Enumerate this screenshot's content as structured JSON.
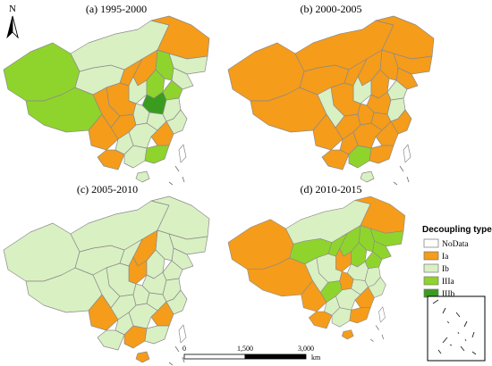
{
  "north_label": "N",
  "panels": [
    {
      "title": "(a) 1995-2000",
      "fills": [
        "IIIa",
        "IIIa",
        "Ib",
        "Ib",
        "Ia",
        "Ib",
        "Ib",
        "IIIa",
        "Ia",
        "Ia",
        "Ib",
        "IIIa",
        "IIIa",
        "IIIb",
        "Ia",
        "Ia",
        "Ia",
        "Ia",
        "Ib",
        "Ib",
        "Ib",
        "Ib",
        "Ia",
        "Ib",
        "Ib",
        "Ia",
        "Ib",
        "IIIa",
        "Ib",
        "NoData"
      ]
    },
    {
      "title": "(b) 2000-2005",
      "fills": [
        "Ia",
        "Ia",
        "Ia",
        "Ia",
        "Ia",
        "Ia",
        "Ia",
        "Ia",
        "Ia",
        "Ia",
        "Ib",
        "Ia",
        "Ib",
        "Ia",
        "Ia",
        "Ib",
        "Ia",
        "Ia",
        "Ia",
        "Ia",
        "Ib",
        "Ia",
        "Ia",
        "Ia",
        "Ia",
        "Ia",
        "IIIa",
        "Ia",
        "Ib",
        "NoData"
      ]
    },
    {
      "title": "(c) 2005-2010",
      "fills": [
        "Ib",
        "Ib",
        "Ib",
        "Ib",
        "Ib",
        "Ib",
        "Ib",
        "Ib",
        "Ia",
        "Ib",
        "Ia",
        "Ib",
        "Ib",
        "Ib",
        "Ib",
        "Ib",
        "Ia",
        "Ib",
        "Ib",
        "Ib",
        "Ib",
        "Ib",
        "Ia",
        "Ib",
        "Ib",
        "Ib",
        "Ia",
        "Ib",
        "Ia",
        "NoData"
      ]
    },
    {
      "title": "(d) 2010-2015",
      "fills": [
        "Ia",
        "Ia",
        "IIIa",
        "Ib",
        "Ia",
        "IIIa",
        "IIIa",
        "IIIa",
        "IIIa",
        "IIIa",
        "Ia",
        "IIIa",
        "IIIa",
        "Ib",
        "Ib",
        "Ib",
        "Ia",
        "IIIa",
        "Ia",
        "Ib",
        "Ib",
        "Ib",
        "Ia",
        "Ib",
        "Ib",
        "Ia",
        "Ib",
        "Ia",
        "Ia",
        "NoData"
      ]
    }
  ],
  "legend": {
    "title": "Decoupling type",
    "items": [
      {
        "code": "NoData",
        "label": "NoData",
        "color": "#ffffff"
      },
      {
        "code": "Ia",
        "label": "Ia",
        "color": "#f59c1a"
      },
      {
        "code": "Ib",
        "label": "Ib",
        "color": "#d9f0c3"
      },
      {
        "code": "IIIa",
        "label": "IIIa",
        "color": "#8fd42c"
      },
      {
        "code": "IIIb",
        "label": "IIIb",
        "color": "#3a9c1e"
      }
    ]
  },
  "scale_bar": {
    "ticks": [
      "0",
      "1,500",
      "3,000"
    ],
    "unit": "km"
  }
}
